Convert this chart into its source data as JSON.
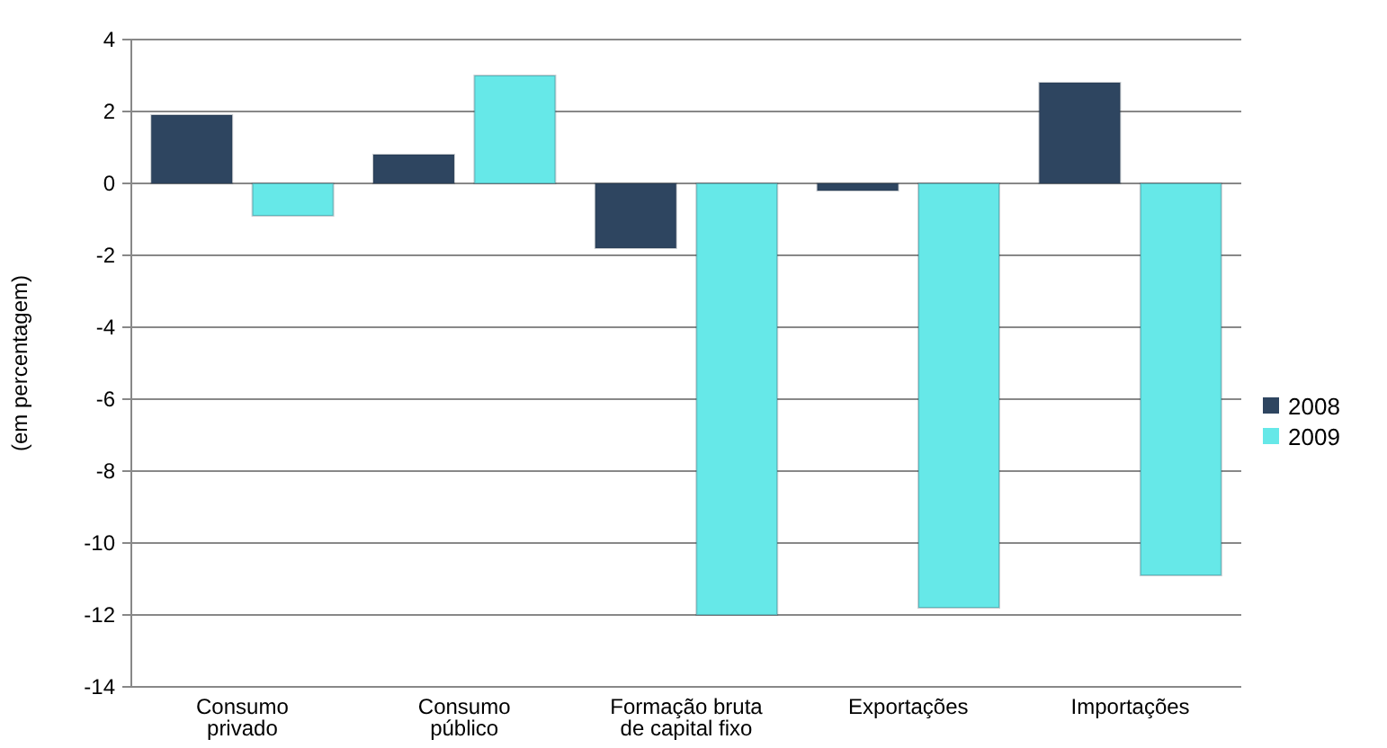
{
  "chart_data": {
    "type": "bar",
    "ylabel": "(em percentagem)",
    "categories": [
      "Consumo privado",
      "Consumo público",
      "Formação bruta de capital fixo",
      "Exportações",
      "Importações"
    ],
    "series": [
      {
        "name": "2008",
        "color": "#2e4560",
        "values": [
          1.9,
          0.8,
          -1.8,
          -0.2,
          2.8
        ]
      },
      {
        "name": "2009",
        "color": "#66e8e8",
        "values": [
          -0.9,
          3.0,
          -12.0,
          -11.8,
          -10.9
        ]
      }
    ],
    "ylim": [
      -14,
      4
    ],
    "yticks": [
      -14,
      -12,
      -10,
      -8,
      -6,
      -4,
      -2,
      0,
      2,
      4
    ],
    "grid": "y",
    "legend": "right"
  }
}
